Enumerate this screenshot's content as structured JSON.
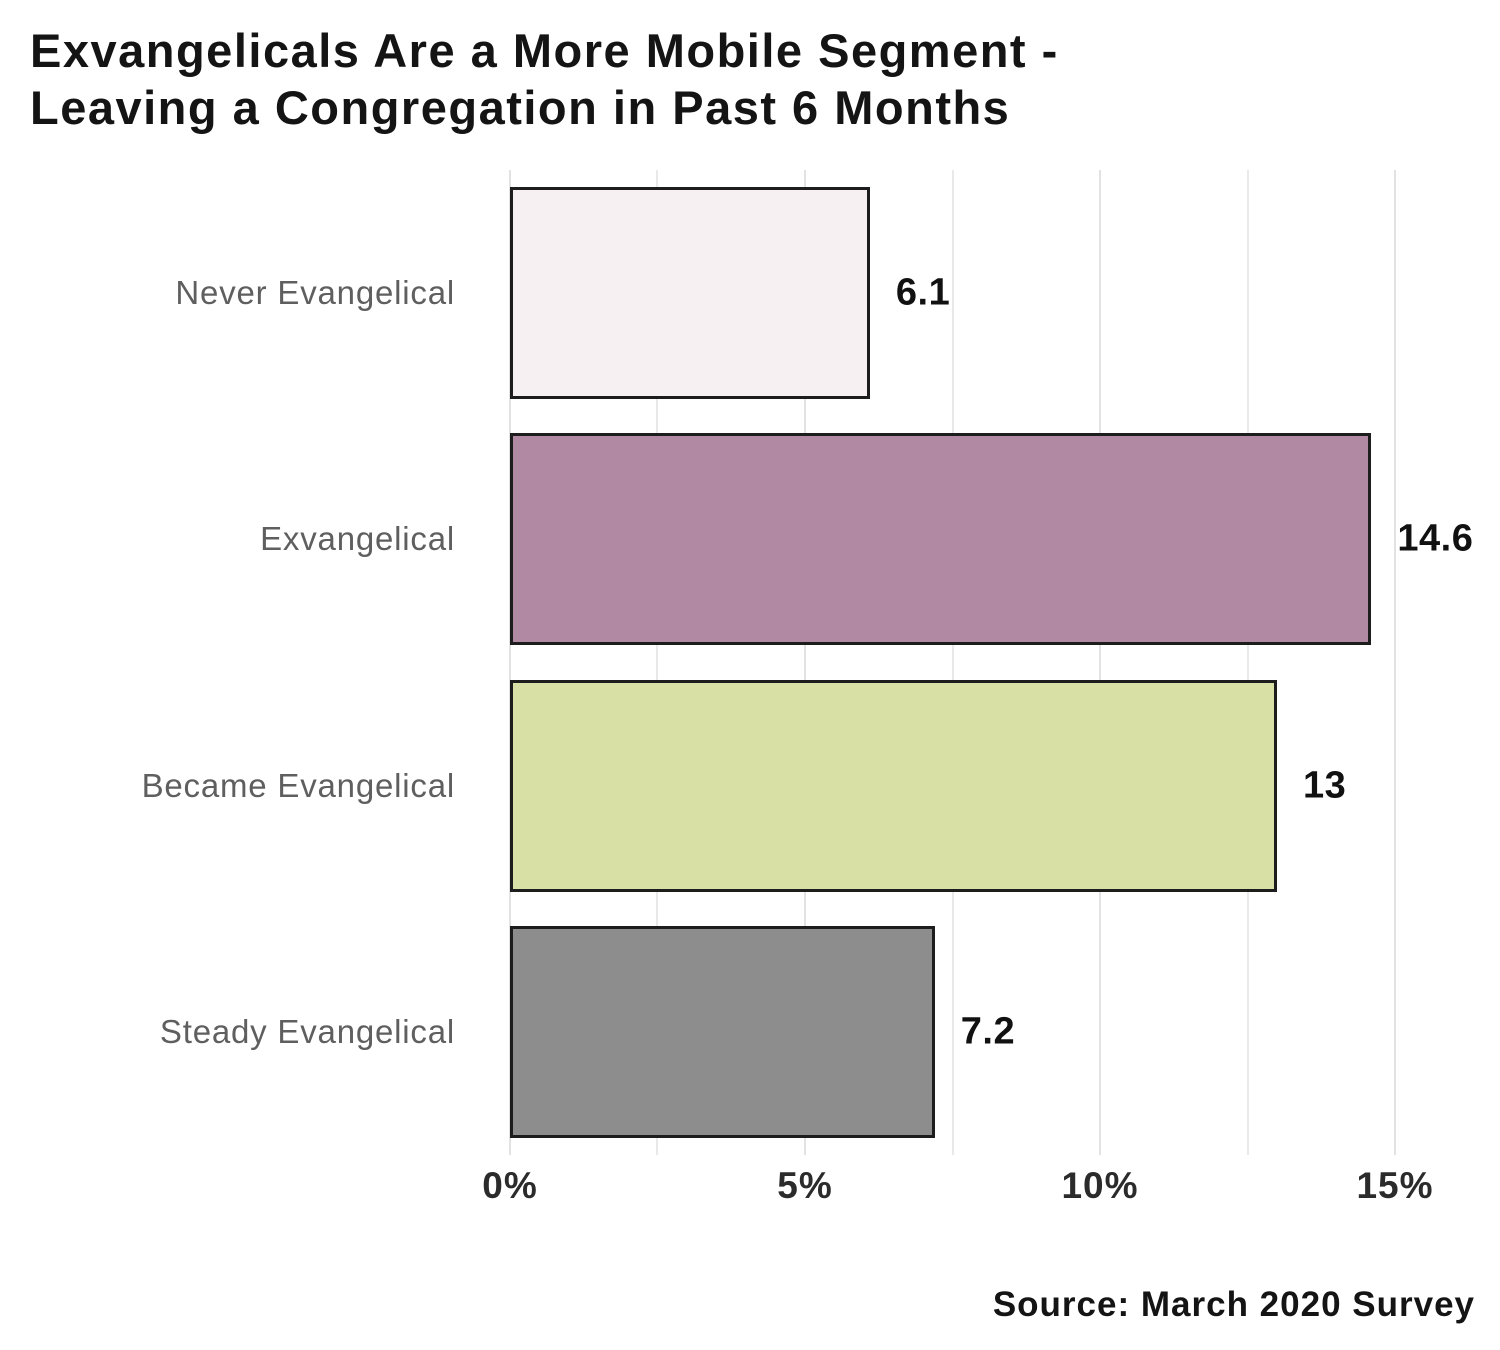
{
  "title": {
    "line1": "Exvangelicals Are a More Mobile Segment -",
    "line2": "Leaving a Congregation in Past 6 Months"
  },
  "source": "Source: March 2020 Survey",
  "chart_data": {
    "type": "bar",
    "orientation": "horizontal",
    "title": "Exvangelicals Are a More Mobile Segment - Leaving a Congregation in Past 6 Months",
    "categories": [
      "Never Evangelical",
      "Exvangelical",
      "Became Evangelical",
      "Steady Evangelical"
    ],
    "values": [
      6.1,
      14.6,
      13,
      7.2
    ],
    "value_labels": [
      "6.1",
      "14.6",
      "13",
      "7.2"
    ],
    "bar_colors": [
      "#f7f0f2",
      "#b289a3",
      "#d8e0a6",
      "#8d8d8d"
    ],
    "bar_border_color": "#1d1d1d",
    "xlabel": "",
    "ylabel": "",
    "xlim": [
      0,
      15
    ],
    "x_ticks": [
      {
        "value": 0,
        "label": "0%"
      },
      {
        "value": 5,
        "label": "5%"
      },
      {
        "value": 10,
        "label": "10%"
      },
      {
        "value": 15,
        "label": "15%"
      }
    ],
    "minor_grid_step": 2.5,
    "grid": "vertical",
    "legend": "none",
    "source": "Source: March 2020 Survey"
  }
}
